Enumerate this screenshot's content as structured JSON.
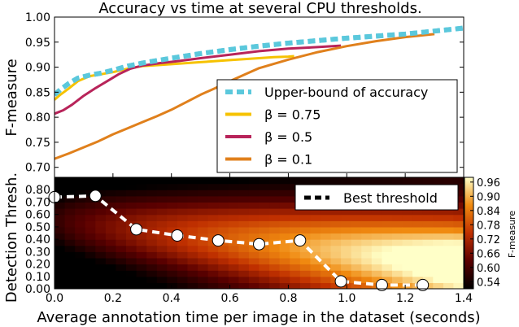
{
  "figure": {
    "title": "Accuracy vs time at several CPU thresholds.",
    "xlabel": "Average annotation time per image in the dataset (seconds)"
  },
  "chart_data": [
    {
      "type": "line",
      "title": "Accuracy vs time at several CPU thresholds.",
      "ylabel": "F-measure",
      "xlim": [
        0,
        1.4
      ],
      "ylim": [
        0.68,
        1.0
      ],
      "yticks": [
        "0.70",
        "0.75",
        "0.80",
        "0.85",
        "0.90",
        "0.95",
        "1.00"
      ],
      "legend_placement": "lower-right",
      "series": [
        {
          "name": "Upper-bound of accuracy",
          "color": "#5bc8dc",
          "dashed": true,
          "x": [
            0.0,
            0.02,
            0.05,
            0.08,
            0.12,
            0.16,
            0.2,
            0.25,
            0.3,
            0.4,
            0.5,
            0.6,
            0.7,
            0.8,
            0.9,
            1.0,
            1.1,
            1.2,
            1.3,
            1.4
          ],
          "y": [
            0.845,
            0.855,
            0.868,
            0.878,
            0.884,
            0.888,
            0.894,
            0.902,
            0.908,
            0.918,
            0.927,
            0.935,
            0.942,
            0.948,
            0.953,
            0.958,
            0.962,
            0.966,
            0.972,
            0.978
          ]
        },
        {
          "name": "β = 0.75",
          "color": "#f6c200",
          "dashed": false,
          "x": [
            0.0,
            0.02,
            0.05,
            0.08,
            0.12,
            0.16,
            0.2,
            0.25,
            0.3,
            0.35,
            0.4,
            0.5,
            0.6,
            0.7,
            0.75,
            0.8,
            0.82
          ],
          "y": [
            0.835,
            0.845,
            0.858,
            0.872,
            0.882,
            0.886,
            0.89,
            0.897,
            0.902,
            0.904,
            0.906,
            0.91,
            0.914,
            0.918,
            0.92,
            0.921,
            0.922
          ]
        },
        {
          "name": "β = 0.5",
          "color": "#b8245a",
          "dashed": false,
          "x": [
            0.0,
            0.03,
            0.06,
            0.1,
            0.14,
            0.18,
            0.22,
            0.26,
            0.3,
            0.36,
            0.42,
            0.5,
            0.6,
            0.7,
            0.8,
            0.9,
            0.98
          ],
          "y": [
            0.807,
            0.814,
            0.825,
            0.843,
            0.858,
            0.872,
            0.886,
            0.897,
            0.903,
            0.908,
            0.912,
            0.918,
            0.925,
            0.932,
            0.937,
            0.94,
            0.943
          ]
        },
        {
          "name": "β = 0.1",
          "color": "#e0801c",
          "dashed": false,
          "x": [
            0.0,
            0.05,
            0.1,
            0.15,
            0.2,
            0.25,
            0.3,
            0.35,
            0.4,
            0.45,
            0.5,
            0.55,
            0.6,
            0.65,
            0.7,
            0.8,
            0.9,
            1.0,
            1.1,
            1.2,
            1.3
          ],
          "y": [
            0.717,
            0.728,
            0.74,
            0.752,
            0.766,
            0.778,
            0.79,
            0.802,
            0.815,
            0.83,
            0.845,
            0.858,
            0.872,
            0.885,
            0.898,
            0.915,
            0.93,
            0.942,
            0.952,
            0.96,
            0.966
          ]
        }
      ]
    },
    {
      "type": "heatmap",
      "ylabel": "Detection Thresh.",
      "xlim": [
        0,
        1.4
      ],
      "ylim": [
        0,
        0.9
      ],
      "xticks": [
        "0.0",
        "0.2",
        "0.4",
        "0.6",
        "0.8",
        "1.0",
        "1.2",
        "1.4"
      ],
      "yticks": [
        "0.00",
        "0.10",
        "0.20",
        "0.30",
        "0.40",
        "0.50",
        "0.60",
        "0.70",
        "0.80"
      ],
      "colorbar": {
        "label": "F-measure",
        "range": [
          0.51,
          0.98
        ],
        "ticks": [
          "0.54",
          "0.60",
          "0.66",
          "0.72",
          "0.78",
          "0.84",
          "0.90",
          "0.96"
        ]
      },
      "legend_placement": "top-right",
      "series": [
        {
          "name": "Best threshold",
          "color": "#ffffff",
          "dashed": true,
          "x": [
            0.0,
            0.14,
            0.28,
            0.42,
            0.56,
            0.7,
            0.84,
            0.98,
            1.12,
            1.26
          ],
          "y": [
            0.74,
            0.75,
            0.48,
            0.43,
            0.39,
            0.36,
            0.39,
            0.06,
            0.03,
            0.03
          ]
        }
      ]
    }
  ]
}
